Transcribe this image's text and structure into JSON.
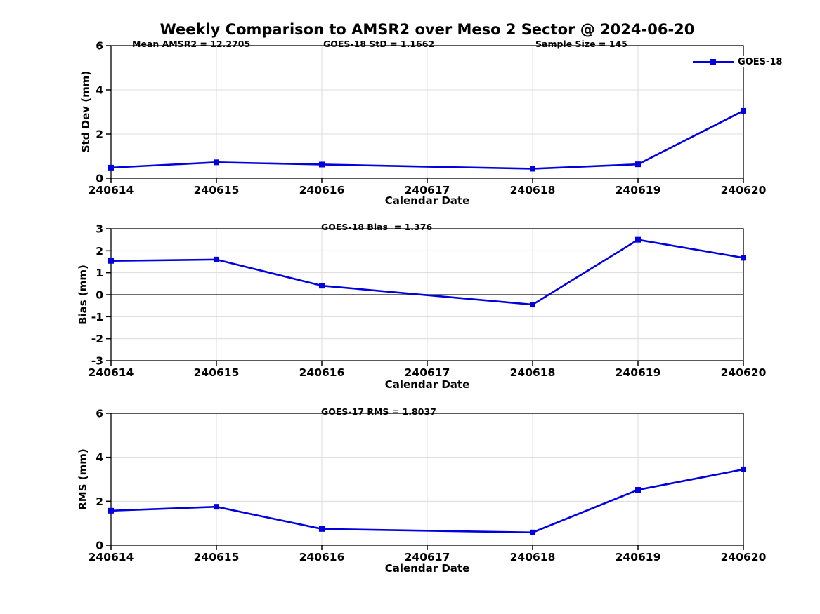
{
  "title": "Weekly Comparison to AMSR2 over Meso 2 Sector @ 2024-06-20",
  "colors": {
    "line": "#0000dd",
    "grid": "#dcdcdc",
    "axis": "#000000",
    "zero_line": "#3c3c3c",
    "text": "#000000"
  },
  "xlabel": "Calendar Date",
  "chart_data": {
    "type": "line",
    "categories": [
      "240614",
      "240615",
      "240616",
      "240617",
      "240618",
      "240619",
      "240620"
    ],
    "legend_position": "top-right",
    "grid": true,
    "panels": [
      {
        "name": "std-dev",
        "ylabel": "Std Dev (mm)",
        "ylim": [
          0,
          6
        ],
        "yticks": [
          0,
          2,
          4,
          6
        ],
        "zero_line": false,
        "annotations": [
          {
            "text": "Mean AMSR2 = 12.2705"
          },
          {
            "text": "GOES-18 StD = 1.1662"
          },
          {
            "text": "Sample Size = 145"
          }
        ],
        "series": [
          {
            "name": "GOES-18",
            "values": [
              0.48,
              0.72,
              0.62,
              null,
              0.43,
              0.63,
              3.05
            ]
          }
        ]
      },
      {
        "name": "bias",
        "ylabel": "Bias (mm)",
        "ylim": [
          -3,
          3
        ],
        "yticks": [
          -3,
          -2,
          -1,
          0,
          1,
          2,
          3
        ],
        "zero_line": true,
        "annotations": [
          {
            "text": "GOES-18 Bias  = 1.376"
          }
        ],
        "series": [
          {
            "name": "GOES-18",
            "values": [
              1.54,
              1.6,
              0.41,
              null,
              -0.45,
              2.5,
              1.68
            ]
          }
        ]
      },
      {
        "name": "rms",
        "ylabel": "RMS (mm)",
        "ylim": [
          0,
          6
        ],
        "yticks": [
          0,
          2,
          4,
          6
        ],
        "zero_line": false,
        "annotations": [
          {
            "text": "GOES-17 RMS = 1.8037"
          }
        ],
        "series": [
          {
            "name": "GOES-18",
            "values": [
              1.57,
              1.75,
              0.74,
              null,
              0.58,
              2.52,
              3.45
            ]
          }
        ]
      }
    ]
  }
}
